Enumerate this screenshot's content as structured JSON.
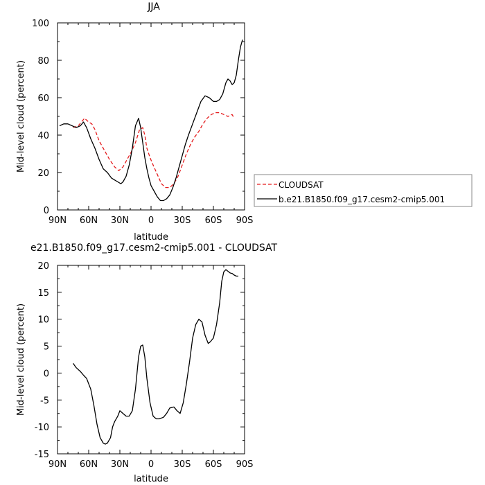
{
  "chart_data": [
    {
      "type": "line",
      "title": "JJA",
      "xlabel": "latitude",
      "ylabel": "Mid-level cloud (percent)",
      "xlim": [
        -90,
        90
      ],
      "ylim": [
        0,
        100
      ],
      "xticks": [
        {
          "value": -90,
          "label": "90N"
        },
        {
          "value": -60,
          "label": "60N"
        },
        {
          "value": -30,
          "label": "30N"
        },
        {
          "value": 0,
          "label": "0"
        },
        {
          "value": 30,
          "label": "30S"
        },
        {
          "value": 60,
          "label": "60S"
        },
        {
          "value": 90,
          "label": "90S"
        }
      ],
      "yticks": [
        0,
        20,
        40,
        60,
        80,
        100
      ],
      "legend_position": "right",
      "series": [
        {
          "name": "CLOUDSAT",
          "color": "#e41a1c",
          "dash": true,
          "x": [
            -75,
            -70,
            -67,
            -64,
            -60,
            -57,
            -54,
            -50,
            -45,
            -40,
            -35,
            -31,
            -27,
            -23,
            -19,
            -15,
            -11,
            -8,
            -6,
            -4,
            -1,
            2,
            6,
            10,
            14,
            18,
            22,
            26,
            30,
            34,
            38,
            42,
            46,
            50,
            54,
            58,
            62,
            66,
            70,
            74,
            78,
            80
          ],
          "y": [
            44,
            45,
            47,
            49,
            47,
            46,
            43,
            37,
            32,
            27,
            23,
            21,
            23,
            27,
            31,
            36,
            43,
            44,
            40,
            33,
            28,
            24,
            19,
            14,
            12,
            12,
            14,
            18,
            24,
            30,
            35,
            39,
            42,
            46,
            49,
            51,
            52,
            52,
            51,
            50,
            51,
            49
          ]
        },
        {
          "name": "b.e21.B1850.f09_g17.cesm2-cmip5.001",
          "color": "#000000",
          "dash": false,
          "x": [
            -88,
            -84,
            -80,
            -76,
            -72,
            -68,
            -65,
            -62,
            -58,
            -54,
            -50,
            -46,
            -42,
            -38,
            -35,
            -32,
            -29,
            -27,
            -24,
            -21,
            -18,
            -15,
            -12,
            -10,
            -8,
            -6,
            -4,
            -2,
            0,
            3,
            6,
            9,
            12,
            15,
            18,
            21,
            24,
            27,
            30,
            33,
            36,
            40,
            44,
            48,
            52,
            56,
            60,
            63,
            66,
            69,
            72,
            74,
            76,
            78,
            80,
            82,
            84,
            86,
            88
          ],
          "y": [
            45,
            46,
            46,
            45,
            44,
            45,
            47,
            44,
            38,
            33,
            27,
            22,
            20,
            17,
            16,
            15,
            14,
            15,
            18,
            24,
            33,
            45,
            49,
            44,
            36,
            28,
            22,
            17,
            13,
            10,
            7,
            5,
            5,
            6,
            8,
            12,
            17,
            23,
            29,
            35,
            40,
            46,
            52,
            58,
            61,
            60,
            58,
            58,
            59,
            62,
            68,
            70,
            69,
            67,
            68,
            72,
            80,
            87,
            91
          ]
        }
      ]
    },
    {
      "type": "line",
      "title": "e21.B1850.f09_g17.cesm2-cmip5.001 - CLOUDSAT",
      "xlabel": "latitude",
      "ylabel": "Mid-level cloud (percent)",
      "xlim": [
        -90,
        90
      ],
      "ylim": [
        -15,
        20
      ],
      "xticks": [
        {
          "value": -90,
          "label": "90N"
        },
        {
          "value": -60,
          "label": "60N"
        },
        {
          "value": -30,
          "label": "30N"
        },
        {
          "value": 0,
          "label": "0"
        },
        {
          "value": 30,
          "label": "30S"
        },
        {
          "value": 60,
          "label": "60S"
        },
        {
          "value": 90,
          "label": "90S"
        }
      ],
      "yticks": [
        -15,
        -10,
        -5,
        0,
        5,
        10,
        15,
        20
      ],
      "series": [
        {
          "color": "#000000",
          "dash": false,
          "x": [
            -75,
            -72,
            -68,
            -65,
            -62,
            -58,
            -55,
            -52,
            -49,
            -46,
            -44,
            -42,
            -39,
            -37,
            -35,
            -32,
            -30,
            -27,
            -24,
            -21,
            -18,
            -15,
            -12,
            -10,
            -8,
            -6,
            -4,
            -1,
            2,
            5,
            8,
            12,
            15,
            18,
            22,
            25,
            28,
            31,
            34,
            37,
            40,
            43,
            46,
            49,
            52,
            55,
            57,
            60,
            63,
            66,
            68,
            70,
            72,
            74,
            76,
            78,
            80,
            82,
            84
          ],
          "y": [
            1.8,
            1,
            0.3,
            -0.4,
            -1,
            -3,
            -6,
            -9.5,
            -12,
            -13,
            -13.2,
            -13,
            -12,
            -10,
            -9,
            -8,
            -7,
            -7.5,
            -8,
            -8,
            -7,
            -3,
            3,
            5,
            5.2,
            3,
            -1,
            -5.5,
            -8,
            -8.5,
            -8.5,
            -8.2,
            -7.5,
            -6.5,
            -6.3,
            -7,
            -7.5,
            -5.5,
            -2,
            2,
            6.5,
            9,
            10,
            9.5,
            7,
            5.5,
            5.8,
            6.5,
            9,
            13,
            17,
            18.8,
            19.2,
            18.9,
            18.6,
            18.5,
            18.2,
            18,
            18
          ]
        }
      ]
    }
  ]
}
